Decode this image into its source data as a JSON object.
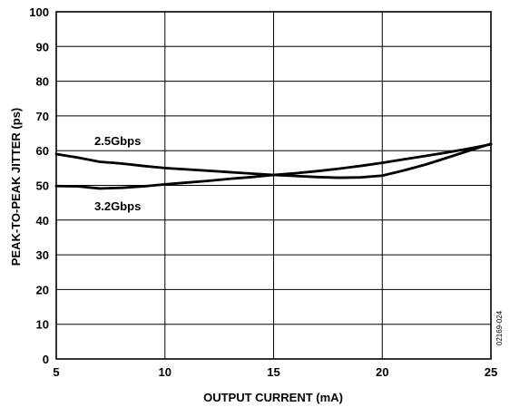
{
  "chart_data": {
    "type": "line",
    "xlabel": "OUTPUT CURRENT (mA)",
    "ylabel": "PEAK-TO-PEAK JITTER (ps)",
    "xlim": [
      5,
      25
    ],
    "ylim": [
      0,
      100
    ],
    "xticks": [
      5,
      10,
      15,
      20,
      25
    ],
    "yticks": [
      0,
      10,
      20,
      30,
      40,
      50,
      60,
      70,
      80,
      90,
      100
    ],
    "grid": true,
    "series": [
      {
        "name": "2.5Gbps",
        "x": [
          5,
          6,
          7,
          8,
          9,
          10,
          11,
          12,
          13,
          14,
          15,
          16,
          17,
          18,
          19,
          20,
          21,
          22,
          23,
          24,
          25
        ],
        "y": [
          59,
          58,
          56.8,
          56.3,
          55.6,
          55,
          54.6,
          54.2,
          53.8,
          53.4,
          53,
          52.7,
          52.4,
          52.2,
          52.3,
          52.8,
          54.3,
          56,
          58,
          60,
          62
        ]
      },
      {
        "name": "3.2Gbps",
        "x": [
          5,
          6,
          7,
          8,
          9,
          10,
          11,
          12,
          13,
          14,
          15,
          16,
          17,
          18,
          19,
          20,
          21,
          22,
          23,
          24,
          25
        ],
        "y": [
          49.8,
          49.7,
          49.1,
          49.3,
          49.7,
          50.3,
          50.8,
          51.3,
          51.9,
          52.4,
          53,
          53.5,
          54.1,
          54.8,
          55.6,
          56.5,
          57.5,
          58.5,
          59.5,
          60.6,
          61.8
        ]
      }
    ],
    "annotations": [
      "2.5Gbps",
      "3.2Gbps"
    ],
    "figure_id": "02169-024"
  }
}
